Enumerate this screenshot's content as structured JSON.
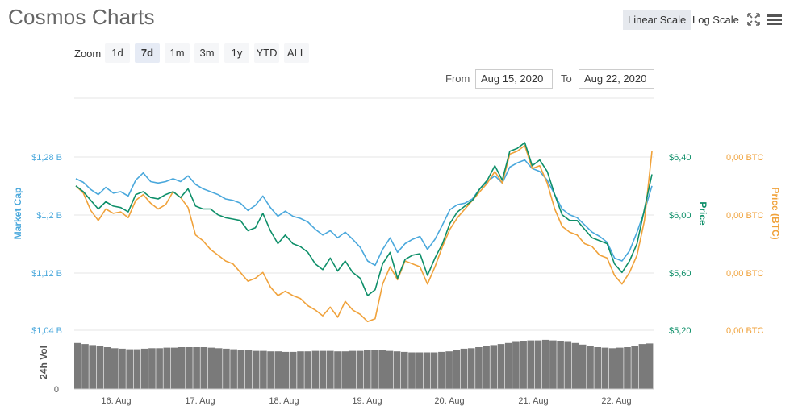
{
  "header": {
    "title": "Cosmos Charts",
    "linear_scale": "Linear Scale",
    "log_scale": "Log Scale"
  },
  "zoom": {
    "label": "Zoom",
    "options": [
      "1d",
      "7d",
      "1m",
      "3m",
      "1y",
      "YTD",
      "ALL"
    ],
    "selected": "7d"
  },
  "range": {
    "from_label": "From",
    "from_value": "Aug 15, 2020",
    "to_label": "To",
    "to_value": "Aug 22, 2020"
  },
  "colors": {
    "market_cap": "#4aa8dc",
    "price": "#0e8f69",
    "price_btc": "#f0a23b",
    "volume": "#7a7a7a",
    "grid": "#e6e6e6"
  },
  "chart_data": {
    "type": "line",
    "x_ticks": [
      "16. Aug",
      "17. Aug",
      "18. Aug",
      "19. Aug",
      "20. Aug",
      "21. Aug",
      "22. Aug"
    ],
    "left_axis": {
      "label": "Market Cap",
      "ticks": [
        "$1,28 B",
        "$1,2 B",
        "$1,12 B",
        "$1,04 B"
      ]
    },
    "right_axis_price": {
      "label": "Price",
      "ticks": [
        "$6,40",
        "$6,00",
        "$5,60",
        "$5,20"
      ]
    },
    "right_axis_btc": {
      "label": "Price (BTC)",
      "ticks": [
        "0,00 BTC",
        "0,00 BTC",
        "0,00 BTC",
        "0,00 BTC"
      ]
    },
    "volume_axis": {
      "label": "24h Vol",
      "ticks": [
        "0"
      ]
    },
    "grid": true,
    "series": [
      {
        "name": "Market Cap",
        "y_range": [
          1.04,
          1.28
        ],
        "values": [
          1.25,
          1.245,
          1.235,
          1.228,
          1.238,
          1.23,
          1.232,
          1.226,
          1.248,
          1.258,
          1.246,
          1.244,
          1.246,
          1.25,
          1.246,
          1.254,
          1.242,
          1.236,
          1.232,
          1.228,
          1.222,
          1.22,
          1.216,
          1.206,
          1.213,
          1.226,
          1.21,
          1.198,
          1.205,
          1.198,
          1.195,
          1.19,
          1.18,
          1.172,
          1.178,
          1.168,
          1.176,
          1.166,
          1.155,
          1.136,
          1.13,
          1.152,
          1.168,
          1.148,
          1.16,
          1.166,
          1.17,
          1.152,
          1.166,
          1.186,
          1.207,
          1.214,
          1.216,
          1.222,
          1.236,
          1.246,
          1.254,
          1.244,
          1.266,
          1.272,
          1.276,
          1.264,
          1.26,
          1.248,
          1.228,
          1.208,
          1.2,
          1.196,
          1.186,
          1.176,
          1.17,
          1.162,
          1.14,
          1.136,
          1.15,
          1.176,
          1.205,
          1.24
        ]
      },
      {
        "name": "Price",
        "y_range": [
          5.2,
          6.4
        ],
        "values": [
          6.2,
          6.16,
          6.1,
          6.04,
          6.09,
          6.06,
          6.05,
          6.02,
          6.14,
          6.16,
          6.12,
          6.11,
          6.14,
          6.16,
          6.12,
          6.18,
          6.06,
          6.04,
          6.04,
          6.0,
          5.98,
          5.97,
          5.96,
          5.89,
          5.91,
          6.01,
          5.89,
          5.8,
          5.86,
          5.8,
          5.78,
          5.74,
          5.66,
          5.62,
          5.7,
          5.61,
          5.68,
          5.6,
          5.56,
          5.44,
          5.48,
          5.66,
          5.74,
          5.56,
          5.69,
          5.72,
          5.73,
          5.58,
          5.7,
          5.8,
          5.94,
          6.02,
          6.06,
          6.1,
          6.18,
          6.24,
          6.34,
          6.24,
          6.44,
          6.46,
          6.5,
          6.34,
          6.38,
          6.3,
          6.14,
          6.0,
          5.96,
          5.96,
          5.9,
          5.84,
          5.82,
          5.8,
          5.66,
          5.6,
          5.68,
          5.8,
          6.04,
          6.28
        ]
      },
      {
        "name": "Price (BTC)",
        "values": [
          6.2,
          6.15,
          6.03,
          5.96,
          6.04,
          6.01,
          6.02,
          5.98,
          6.1,
          6.14,
          6.08,
          6.04,
          6.07,
          6.16,
          6.12,
          6.05,
          5.86,
          5.82,
          5.76,
          5.72,
          5.68,
          5.66,
          5.6,
          5.54,
          5.56,
          5.6,
          5.5,
          5.44,
          5.47,
          5.44,
          5.42,
          5.37,
          5.34,
          5.3,
          5.36,
          5.29,
          5.4,
          5.34,
          5.31,
          5.26,
          5.28,
          5.52,
          5.64,
          5.55,
          5.68,
          5.66,
          5.64,
          5.52,
          5.64,
          5.78,
          5.9,
          5.98,
          6.04,
          6.1,
          6.16,
          6.22,
          6.3,
          6.22,
          6.42,
          6.44,
          6.48,
          6.32,
          6.34,
          6.22,
          6.04,
          5.92,
          5.88,
          5.86,
          5.8,
          5.78,
          5.72,
          5.7,
          5.58,
          5.52,
          5.6,
          5.72,
          5.96,
          6.44
        ]
      },
      {
        "name": "24h Vol",
        "values": [
          0.88,
          0.86,
          0.84,
          0.82,
          0.8,
          0.78,
          0.77,
          0.76,
          0.76,
          0.77,
          0.78,
          0.78,
          0.79,
          0.79,
          0.8,
          0.8,
          0.8,
          0.8,
          0.79,
          0.78,
          0.77,
          0.76,
          0.75,
          0.74,
          0.73,
          0.73,
          0.72,
          0.72,
          0.71,
          0.71,
          0.72,
          0.72,
          0.73,
          0.73,
          0.73,
          0.72,
          0.72,
          0.73,
          0.73,
          0.74,
          0.74,
          0.74,
          0.73,
          0.72,
          0.71,
          0.7,
          0.7,
          0.7,
          0.7,
          0.71,
          0.72,
          0.74,
          0.77,
          0.78,
          0.8,
          0.82,
          0.84,
          0.86,
          0.88,
          0.9,
          0.92,
          0.93,
          0.93,
          0.94,
          0.93,
          0.92,
          0.9,
          0.88,
          0.85,
          0.82,
          0.8,
          0.79,
          0.78,
          0.79,
          0.8,
          0.83,
          0.86,
          0.87
        ]
      }
    ]
  }
}
